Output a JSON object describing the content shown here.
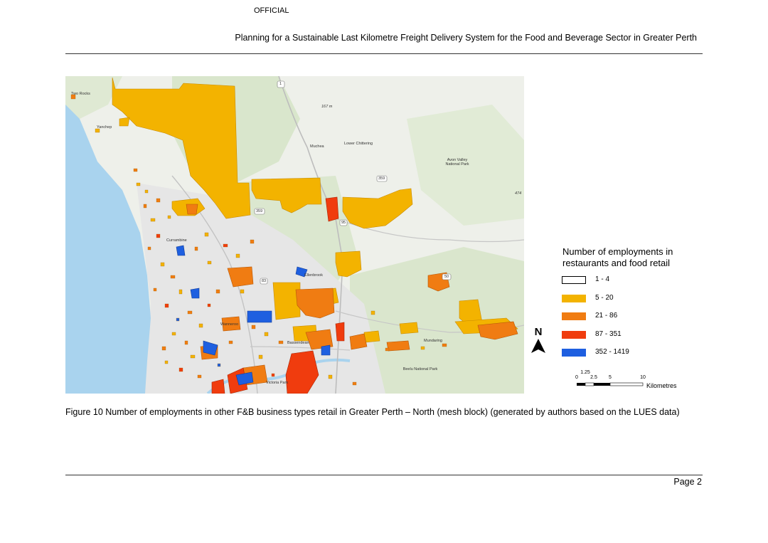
{
  "header": {
    "classification": "OFFICIAL",
    "running_title": "Planning for a Sustainable Last Kilometre Freight Delivery System for the Food and Beverage Sector in Greater Perth"
  },
  "map": {
    "place_labels": [
      "Two Rocks",
      "Yanchep",
      "Muchea",
      "Lower Chittering",
      "Avon Valley National Park",
      "Beelu National Park",
      "Mundaring",
      "Bassendean",
      "Ellenbrook",
      "Currambine",
      "Wanneroo",
      "Victoria Park"
    ],
    "road_shields": [
      "1",
      "359",
      "359",
      "95",
      "83",
      "50"
    ],
    "elevation_labels": [
      "167 m",
      "474"
    ]
  },
  "legend": {
    "title": "Number of employments in restaurants and food retail",
    "classes": [
      {
        "label": "1 - 4",
        "color": "#ffffff"
      },
      {
        "label": "5 - 20",
        "color": "#f3b300"
      },
      {
        "label": "21 - 86",
        "color": "#f07c12"
      },
      {
        "label": "87 - 351",
        "color": "#f03c0e"
      },
      {
        "label": "352 - 1419",
        "color": "#1e5fe0"
      }
    ]
  },
  "north_arrow": {
    "label": "N"
  },
  "scale_bar": {
    "ticks": [
      "0",
      "1.25",
      "2.5",
      "5",
      "10"
    ],
    "unit": "Kilometres"
  },
  "caption": "Figure 10 Number of employments in other F&B business types retail in Greater Perth – North (mesh block) (generated by authors based on the LUES data)",
  "footer": {
    "page": "Page 2"
  },
  "colors": {
    "ocean": "#a9d3ee",
    "park": "#d9e6cc",
    "land": "#eef0ea",
    "urban": "#e4e4e4"
  }
}
